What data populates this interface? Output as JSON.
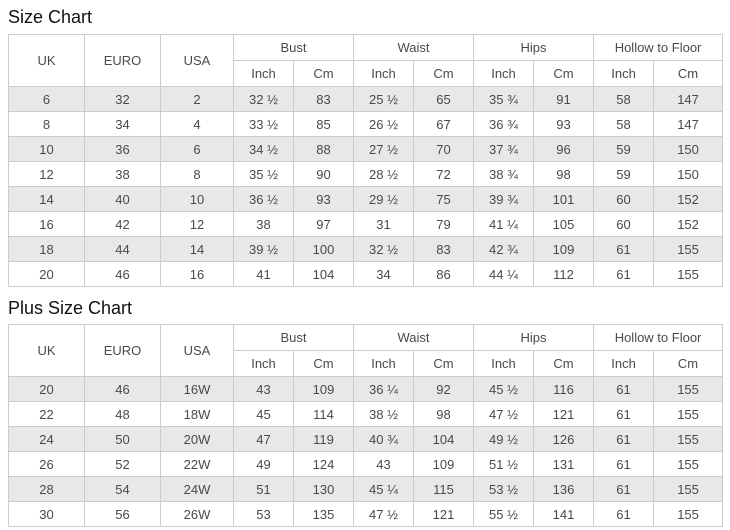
{
  "header": {
    "uk": "UK",
    "euro": "EURO",
    "usa": "USA",
    "groups": [
      "Bust",
      "Waist",
      "Hips",
      "Hollow to Floor"
    ],
    "sub": [
      "Inch",
      "Cm"
    ]
  },
  "colors": {
    "stripe_row": "#e8e8e8",
    "border": "#cccccc",
    "text": "#4a4a4a",
    "title": "#111111",
    "background": "#ffffff"
  },
  "chart_data": [
    {
      "type": "table",
      "title": "Size Chart",
      "columns": [
        "UK",
        "EURO",
        "USA",
        "Bust Inch",
        "Bust Cm",
        "Waist Inch",
        "Waist Cm",
        "Hips Inch",
        "Hips Cm",
        "Hollow to Floor Inch",
        "Hollow to Floor Cm"
      ],
      "rows": [
        [
          "6",
          "32",
          "2",
          "32 ½",
          "83",
          "25 ½",
          "65",
          "35 ¾",
          "91",
          "58",
          "147"
        ],
        [
          "8",
          "34",
          "4",
          "33 ½",
          "85",
          "26 ½",
          "67",
          "36 ¾",
          "93",
          "58",
          "147"
        ],
        [
          "10",
          "36",
          "6",
          "34 ½",
          "88",
          "27 ½",
          "70",
          "37 ¾",
          "96",
          "59",
          "150"
        ],
        [
          "12",
          "38",
          "8",
          "35 ½",
          "90",
          "28 ½",
          "72",
          "38 ¾",
          "98",
          "59",
          "150"
        ],
        [
          "14",
          "40",
          "10",
          "36 ½",
          "93",
          "29 ½",
          "75",
          "39 ¾",
          "101",
          "60",
          "152"
        ],
        [
          "16",
          "42",
          "12",
          "38",
          "97",
          "31",
          "79",
          "41 ¼",
          "105",
          "60",
          "152"
        ],
        [
          "18",
          "44",
          "14",
          "39 ½",
          "100",
          "32 ½",
          "83",
          "42 ¾",
          "109",
          "61",
          "155"
        ],
        [
          "20",
          "46",
          "16",
          "41",
          "104",
          "34",
          "86",
          "44 ¼",
          "112",
          "61",
          "155"
        ]
      ]
    },
    {
      "type": "table",
      "title": "Plus Size Chart",
      "columns": [
        "UK",
        "EURO",
        "USA",
        "Bust Inch",
        "Bust Cm",
        "Waist Inch",
        "Waist Cm",
        "Hips Inch",
        "Hips Cm",
        "Hollow to Floor Inch",
        "Hollow to Floor Cm"
      ],
      "rows": [
        [
          "20",
          "46",
          "16W",
          "43",
          "109",
          "36 ¼",
          "92",
          "45 ½",
          "116",
          "61",
          "155"
        ],
        [
          "22",
          "48",
          "18W",
          "45",
          "114",
          "38 ½",
          "98",
          "47 ½",
          "121",
          "61",
          "155"
        ],
        [
          "24",
          "50",
          "20W",
          "47",
          "119",
          "40 ¾",
          "104",
          "49 ½",
          "126",
          "61",
          "155"
        ],
        [
          "26",
          "52",
          "22W",
          "49",
          "124",
          "43",
          "109",
          "51 ½",
          "131",
          "61",
          "155"
        ],
        [
          "28",
          "54",
          "24W",
          "51",
          "130",
          "45 ¼",
          "115",
          "53 ½",
          "136",
          "61",
          "155"
        ],
        [
          "30",
          "56",
          "26W",
          "53",
          "135",
          "47 ½",
          "121",
          "55 ½",
          "141",
          "61",
          "155"
        ]
      ]
    }
  ]
}
